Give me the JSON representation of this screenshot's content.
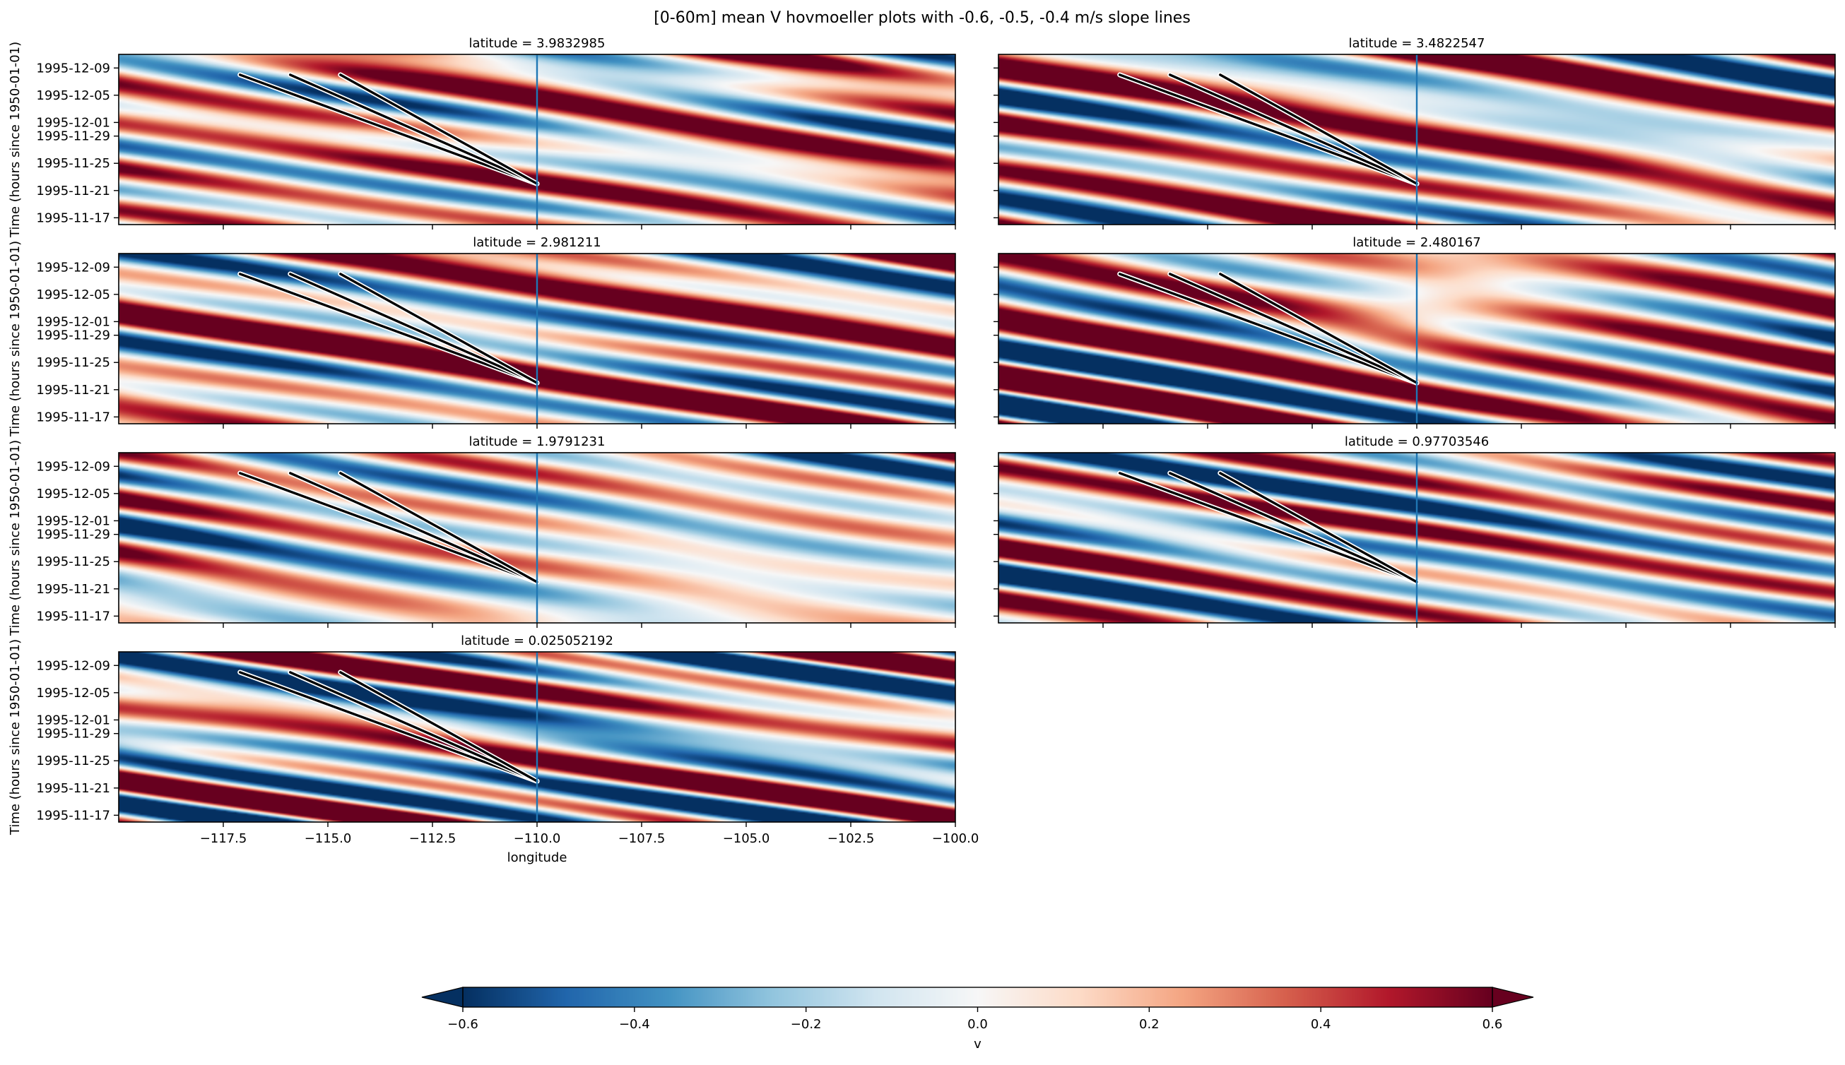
{
  "figure": {
    "suptitle": "[0-60m] mean V hovmoeller plots with -0.6, -0.5, -0.4 m/s slope lines"
  },
  "chart_data": {
    "type": "heatmap",
    "title": "[0-60m] mean V hovmoeller plots with -0.6, -0.5, -0.4 m/s slope lines",
    "xlabel": "longitude",
    "ylabel": "Time (hours since 1950-01-01)",
    "xlim": [
      -120,
      -100
    ],
    "x_ticks": [
      -117.5,
      -115.0,
      -112.5,
      -110.0,
      -107.5,
      -105.0,
      -102.5,
      -100.0
    ],
    "x_tick_labels": [
      "−117.5",
      "−115.0",
      "−112.5",
      "−110.0",
      "−107.5",
      "−105.0",
      "−102.5",
      "−100.0"
    ],
    "ylim": [
      "1995-11-16",
      "1995-12-11"
    ],
    "y_ticks": [
      "1995-11-17",
      "1995-11-21",
      "1995-11-25",
      "1995-11-29",
      "1995-12-01",
      "1995-12-05",
      "1995-12-09"
    ],
    "reference_longitude": -110.0,
    "slope_lines": [
      {
        "speed_ms": -0.6,
        "start": {
          "lon": -117.1,
          "time": "1995-12-08"
        },
        "end": {
          "lon": -110.0,
          "time": "1995-11-22"
        }
      },
      {
        "speed_ms": -0.5,
        "start": {
          "lon": -115.9,
          "time": "1995-12-08"
        },
        "end": {
          "lon": -110.0,
          "time": "1995-11-22"
        }
      },
      {
        "speed_ms": -0.4,
        "start": {
          "lon": -114.7,
          "time": "1995-12-08"
        },
        "end": {
          "lon": -110.0,
          "time": "1995-11-22"
        }
      }
    ],
    "panels": [
      {
        "title": "latitude = 3.9832985",
        "dominant": "positive",
        "amp": 0.55
      },
      {
        "title": "latitude = 3.4822547",
        "dominant": "positive",
        "amp": 0.6
      },
      {
        "title": "latitude = 2.981211",
        "dominant": "positive",
        "amp": 0.55
      },
      {
        "title": "latitude = 2.480167",
        "dominant": "positive",
        "amp": 0.6
      },
      {
        "title": "latitude = 1.9791231",
        "dominant": "mixed",
        "amp": 0.55
      },
      {
        "title": "latitude = 0.97703546",
        "dominant": "mixed",
        "amp": 0.55
      },
      {
        "title": "latitude = 0.025052192",
        "dominant": "mixed",
        "amp": 0.6
      }
    ],
    "colorbar": {
      "label": "v",
      "min": -0.6,
      "max": 0.6,
      "ticks": [
        -0.6,
        -0.4,
        -0.2,
        0.0,
        0.2,
        0.4,
        0.6
      ],
      "tick_labels": [
        "−0.6",
        "−0.4",
        "−0.2",
        "0.0",
        "0.2",
        "0.4",
        "0.6"
      ],
      "colormap": "RdBu_r",
      "extend": "both"
    },
    "colors": {
      "reference_line": "#1f77b4",
      "slope_line": "#000000",
      "slope_line_halo": "#ffffff"
    }
  }
}
